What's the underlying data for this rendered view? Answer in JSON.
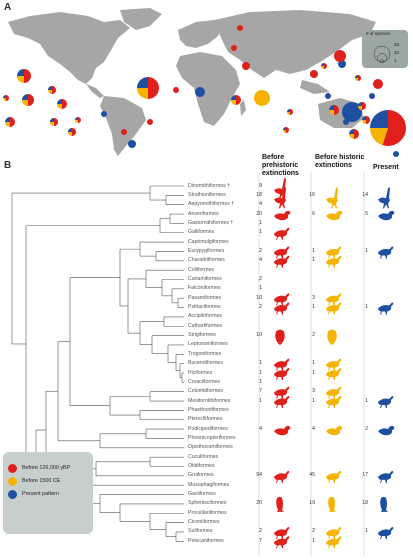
{
  "panel_a": "A",
  "panel_b": "B",
  "map_legend_title": "# of species",
  "map_legend_values": [
    "25",
    "10",
    "1"
  ],
  "columns": {
    "prehistoric": "Before prehistoric extinctions",
    "historic": "Before historic extinctions",
    "present": "Present"
  },
  "colors": {
    "prehistoric": "#e0201b",
    "historic": "#f5b400",
    "present": "#1f4fa0",
    "land": "#a6a6a6",
    "legend_bg": "#c7cfcc"
  },
  "legend": [
    {
      "label": "Before 126,000 yBP",
      "color": "#e0201b"
    },
    {
      "label": "Before 1500 CE",
      "color": "#f5b400"
    },
    {
      "label": "Present pattern",
      "color": "#1f4fa0"
    }
  ],
  "orders": [
    {
      "name": "Dinornithiformes †",
      "pre": "9",
      "hist": "",
      "pres": "",
      "icon_pre": "ratite",
      "icon_hist": "",
      "icon_pres": ""
    },
    {
      "name": "Struthioniformes",
      "pre": "18",
      "hist": "16",
      "pres": "14",
      "icon_pre": "ratite",
      "icon_hist": "ratite",
      "icon_pres": "ratite"
    },
    {
      "name": "Aepyornithiformes †",
      "pre": "4",
      "hist": "",
      "pres": "",
      "icon_pre": "",
      "icon_hist": "",
      "icon_pres": ""
    },
    {
      "name": "Anseriformes",
      "pre": "20",
      "hist": "6",
      "pres": "5",
      "icon_pre": "duck",
      "icon_hist": "duck",
      "icon_pres": "duck"
    },
    {
      "name": "Gastornithiformes †",
      "pre": "1",
      "hist": "",
      "pres": "",
      "icon_pre": "",
      "icon_hist": "",
      "icon_pres": ""
    },
    {
      "name": "Galliformes",
      "pre": "1",
      "hist": "",
      "pres": "",
      "icon_pre": "bird",
      "icon_hist": "",
      "icon_pres": ""
    },
    {
      "name": "Caprimulgiformes",
      "pre": "",
      "hist": "",
      "pres": "",
      "icon_pre": "",
      "icon_hist": "",
      "icon_pres": ""
    },
    {
      "name": "Eurypygiformes",
      "pre": "2",
      "hist": "1",
      "pres": "1",
      "icon_pre": "bird",
      "icon_hist": "bird",
      "icon_pres": "bird"
    },
    {
      "name": "Charadriiformes",
      "pre": "4",
      "hist": "1",
      "pres": "",
      "icon_pre": "bird",
      "icon_hist": "bird",
      "icon_pres": ""
    },
    {
      "name": "Coliiformes",
      "pre": "",
      "hist": "",
      "pres": "",
      "icon_pre": "",
      "icon_hist": "",
      "icon_pres": ""
    },
    {
      "name": "Cariamiformes",
      "pre": "2",
      "hist": "",
      "pres": "",
      "icon_pre": "",
      "icon_hist": "",
      "icon_pres": ""
    },
    {
      "name": "Falconiformes",
      "pre": "1",
      "hist": "",
      "pres": "",
      "icon_pre": "",
      "icon_hist": "",
      "icon_pres": ""
    },
    {
      "name": "Passeriformes",
      "pre": "10",
      "hist": "3",
      "pres": "",
      "icon_pre": "bird",
      "icon_hist": "bird",
      "icon_pres": ""
    },
    {
      "name": "Psittaciformes",
      "pre": "2",
      "hist": "1",
      "pres": "1",
      "icon_pre": "bird",
      "icon_hist": "bird",
      "icon_pres": "bird"
    },
    {
      "name": "Accipitriformes",
      "pre": "",
      "hist": "",
      "pres": "",
      "icon_pre": "",
      "icon_hist": "",
      "icon_pres": ""
    },
    {
      "name": "Cathartiformes",
      "pre": "",
      "hist": "",
      "pres": "",
      "icon_pre": "",
      "icon_hist": "",
      "icon_pres": ""
    },
    {
      "name": "Strigiformes",
      "pre": "10",
      "hist": "2",
      "pres": "",
      "icon_pre": "owl",
      "icon_hist": "owl",
      "icon_pres": ""
    },
    {
      "name": "Leptosomiformes",
      "pre": "",
      "hist": "",
      "pres": "",
      "icon_pre": "",
      "icon_hist": "",
      "icon_pres": ""
    },
    {
      "name": "Trogoniformes",
      "pre": "",
      "hist": "",
      "pres": "",
      "icon_pre": "",
      "icon_hist": "",
      "icon_pres": ""
    },
    {
      "name": "Bucerotiformes",
      "pre": "1",
      "hist": "1",
      "pres": "",
      "icon_pre": "bird",
      "icon_hist": "bird",
      "icon_pres": ""
    },
    {
      "name": "Piciformes",
      "pre": "1",
      "hist": "1",
      "pres": "",
      "icon_pre": "bird",
      "icon_hist": "bird",
      "icon_pres": ""
    },
    {
      "name": "Coraciiformes",
      "pre": "1",
      "hist": "",
      "pres": "",
      "icon_pre": "",
      "icon_hist": "",
      "icon_pres": ""
    },
    {
      "name": "Columbiformes",
      "pre": "7",
      "hist": "3",
      "pres": "",
      "icon_pre": "bird",
      "icon_hist": "bird",
      "icon_pres": ""
    },
    {
      "name": "Mesitornithiformes",
      "pre": "1",
      "hist": "1",
      "pres": "1",
      "icon_pre": "bird",
      "icon_hist": "bird",
      "icon_pres": "bird"
    },
    {
      "name": "Phaethontiformes",
      "pre": "",
      "hist": "",
      "pres": "",
      "icon_pre": "",
      "icon_hist": "",
      "icon_pres": ""
    },
    {
      "name": "Pteroclliformes",
      "pre": "",
      "hist": "",
      "pres": "",
      "icon_pre": "",
      "icon_hist": "",
      "icon_pres": ""
    },
    {
      "name": "Podicipediformes",
      "pre": "4",
      "hist": "4",
      "pres": "2",
      "icon_pre": "duck",
      "icon_hist": "duck",
      "icon_pres": "duck"
    },
    {
      "name": "Phoenicopteriformes",
      "pre": "",
      "hist": "",
      "pres": "",
      "icon_pre": "",
      "icon_hist": "",
      "icon_pres": ""
    },
    {
      "name": "Opisthocomiformes",
      "pre": "",
      "hist": "",
      "pres": "",
      "icon_pre": "",
      "icon_hist": "",
      "icon_pres": ""
    },
    {
      "name": "Cuculiformes",
      "pre": "",
      "hist": "",
      "pres": "",
      "icon_pre": "",
      "icon_hist": "",
      "icon_pres": ""
    },
    {
      "name": "Otidiformes",
      "pre": "",
      "hist": "",
      "pres": "",
      "icon_pre": "",
      "icon_hist": "",
      "icon_pres": ""
    },
    {
      "name": "Gruiformes",
      "pre": "94",
      "hist": "45",
      "pres": "17",
      "icon_pre": "bird",
      "icon_hist": "bird",
      "icon_pres": "bird"
    },
    {
      "name": "Musophagiformes",
      "pre": "",
      "hist": "",
      "pres": "",
      "icon_pre": "",
      "icon_hist": "",
      "icon_pres": ""
    },
    {
      "name": "Gaviiformes",
      "pre": "",
      "hist": "",
      "pres": "",
      "icon_pre": "",
      "icon_hist": "",
      "icon_pres": ""
    },
    {
      "name": "Sphenisciformes",
      "pre": "20",
      "hist": "19",
      "pres": "18",
      "icon_pre": "penguin",
      "icon_hist": "penguin",
      "icon_pres": "penguin"
    },
    {
      "name": "Procellariiformes",
      "pre": "",
      "hist": "",
      "pres": "",
      "icon_pre": "",
      "icon_hist": "",
      "icon_pres": ""
    },
    {
      "name": "Ciconiiformes",
      "pre": "",
      "hist": "",
      "pres": "",
      "icon_pre": "",
      "icon_hist": "",
      "icon_pres": ""
    },
    {
      "name": "Suliformes",
      "pre": "2",
      "hist": "2",
      "pres": "1",
      "icon_pre": "bird",
      "icon_hist": "bird",
      "icon_pres": "bird"
    },
    {
      "name": "Pelecaniformes",
      "pre": "7",
      "hist": "1",
      "pres": "",
      "icon_pre": "bird",
      "icon_hist": "bird",
      "icon_pres": ""
    }
  ]
}
